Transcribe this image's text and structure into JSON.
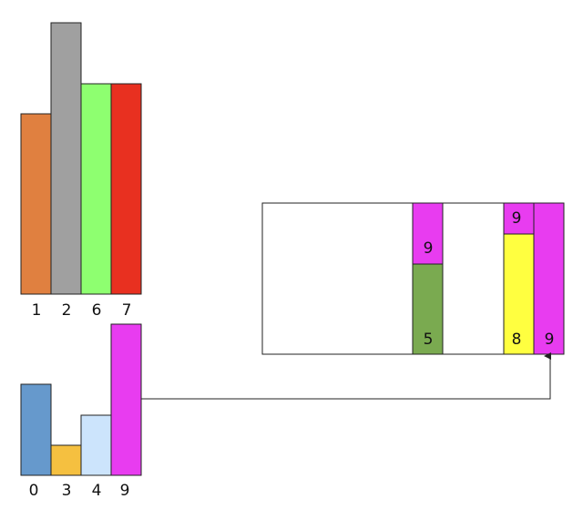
{
  "top_group": {
    "labels": [
      1,
      2,
      6,
      7
    ]
  },
  "bottom_group": {
    "labels": [
      0,
      3,
      4,
      9
    ]
  },
  "container": {
    "column_left": {
      "bottom": 5,
      "top": 9
    },
    "column_middle": {
      "bottom": 8,
      "top": 9
    },
    "column_right": {
      "label": 9
    }
  }
}
